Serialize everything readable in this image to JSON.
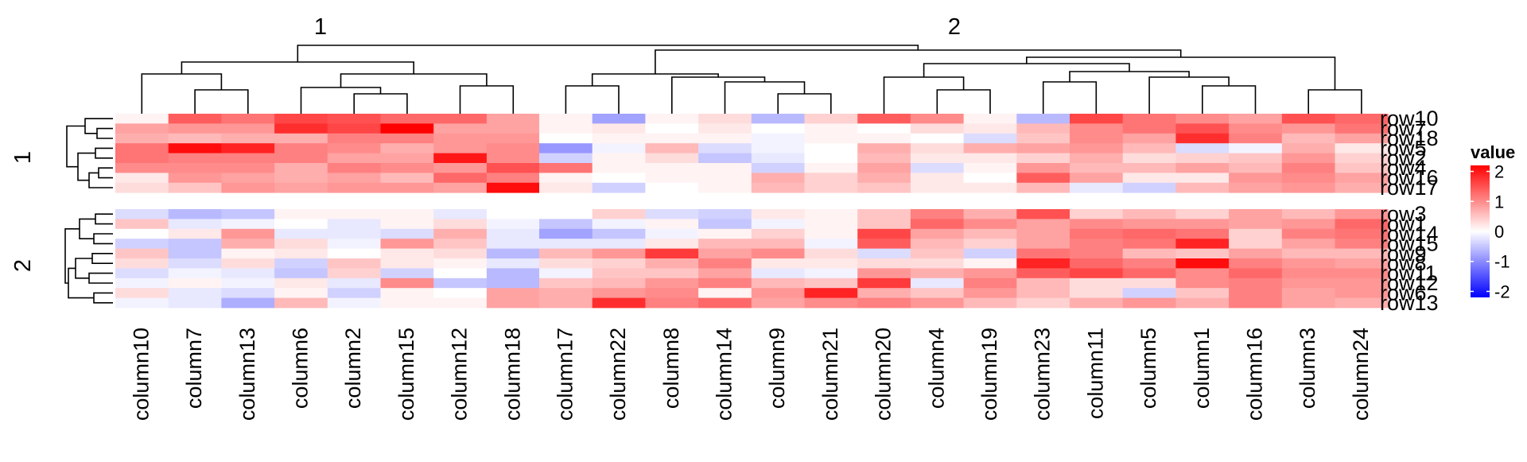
{
  "chart_data": {
    "type": "heatmap",
    "column_split_titles": [
      "1",
      "2"
    ],
    "row_split_titles": [
      "1",
      "2"
    ],
    "columns": [
      [
        "column10",
        "column7",
        "column13",
        "column6",
        "column2",
        "column15",
        "column12",
        "column18"
      ],
      [
        "column17",
        "column22",
        "column8",
        "column14",
        "column9",
        "column21",
        "column20",
        "column4",
        "column19",
        "column23",
        "column11",
        "column5",
        "column1",
        "column16",
        "column3",
        "column24"
      ]
    ],
    "rows": [
      [
        "row10",
        "row7",
        "row18",
        "row5",
        "row2",
        "row4",
        "row16",
        "row17"
      ],
      [
        "row3",
        "row1",
        "row14",
        "row15",
        "row9",
        "row8",
        "row11",
        "row12",
        "row6",
        "row13"
      ]
    ],
    "legend": {
      "title": "value",
      "ticks": [
        2,
        1,
        0,
        -1,
        -2
      ],
      "range": [
        -2.2,
        2.2
      ],
      "colors": {
        "low": "#0000ff",
        "mid": "#ffffff",
        "high": "#ff0000"
      }
    },
    "values": [
      [
        0.1,
        1.4,
        1.2,
        1.6,
        1.5,
        1.3,
        1.3,
        0.8,
        0.1,
        -0.8,
        0.1,
        0.3,
        -0.6,
        0.4,
        1.4,
        1.0,
        0.1,
        -0.6,
        1.6,
        1.2,
        1.0,
        0.8,
        1.5,
        1.3
      ],
      [
        0.8,
        0.9,
        0.9,
        1.8,
        1.6,
        2.2,
        0.8,
        0.8,
        0.1,
        0.2,
        0.0,
        0.2,
        0.0,
        0.1,
        0.0,
        0.3,
        0.2,
        0.6,
        1.0,
        1.2,
        1.5,
        1.0,
        0.9,
        1.2
      ],
      [
        0.7,
        0.6,
        0.7,
        0.7,
        1.1,
        1.1,
        0.9,
        0.9,
        0.0,
        0.1,
        0.1,
        0.1,
        -0.1,
        0.1,
        0.1,
        0.0,
        -0.3,
        0.5,
        1.0,
        0.8,
        1.8,
        1.1,
        0.6,
        0.8
      ],
      [
        1.2,
        2.1,
        1.9,
        1.1,
        1.0,
        0.7,
        0.9,
        1.0,
        -0.9,
        -0.1,
        0.6,
        -0.3,
        -0.1,
        0.0,
        0.7,
        0.3,
        0.7,
        0.8,
        0.9,
        0.6,
        -0.3,
        -0.1,
        0.7,
        0.2
      ],
      [
        1.2,
        1.1,
        1.1,
        1.1,
        0.8,
        0.8,
        2.0,
        1.0,
        -0.4,
        0.1,
        0.3,
        -0.5,
        -0.2,
        0.0,
        0.6,
        0.2,
        0.2,
        0.4,
        0.7,
        0.3,
        0.4,
        0.5,
        0.9,
        0.4
      ],
      [
        1.0,
        1.0,
        1.0,
        0.7,
        1.1,
        1.0,
        0.9,
        1.5,
        1.2,
        0.1,
        0.1,
        0.1,
        -0.4,
        0.1,
        0.8,
        -0.3,
        0.1,
        0.9,
        0.6,
        0.6,
        0.8,
        0.6,
        1.1,
        0.5
      ],
      [
        0.2,
        0.9,
        0.8,
        0.7,
        0.8,
        0.6,
        1.3,
        1.1,
        0.1,
        0.0,
        0.1,
        0.1,
        0.7,
        0.4,
        0.7,
        0.2,
        0.0,
        1.4,
        0.8,
        0.2,
        0.2,
        0.9,
        1.0,
        0.8
      ],
      [
        0.3,
        0.5,
        0.9,
        0.8,
        0.9,
        0.9,
        0.8,
        2.1,
        0.2,
        -0.4,
        0.0,
        0.1,
        0.6,
        0.4,
        0.5,
        0.2,
        0.2,
        0.6,
        -0.2,
        -0.4,
        0.6,
        0.8,
        0.9,
        0.7
      ],
      [
        -0.3,
        -0.6,
        -0.5,
        0.1,
        0.1,
        0.1,
        -0.2,
        0.0,
        0.0,
        0.4,
        -0.3,
        -0.4,
        0.2,
        0.1,
        0.5,
        1.1,
        0.7,
        1.5,
        0.4,
        0.6,
        0.4,
        0.8,
        0.6,
        0.9
      ],
      [
        0.5,
        -0.2,
        -0.1,
        0.0,
        -0.2,
        0.1,
        0.3,
        -0.1,
        -0.5,
        -0.1,
        0.1,
        -0.5,
        -0.1,
        0.1,
        0.5,
        1.3,
        1.0,
        0.8,
        1.0,
        0.9,
        0.9,
        0.8,
        0.9,
        1.3
      ],
      [
        0.0,
        0.2,
        0.9,
        -0.2,
        -0.2,
        -0.3,
        0.7,
        -0.2,
        -0.8,
        -0.5,
        -0.1,
        0.1,
        0.4,
        0.1,
        1.6,
        0.8,
        0.6,
        0.8,
        1.2,
        1.3,
        1.2,
        0.4,
        1.1,
        1.2
      ],
      [
        -0.4,
        -0.5,
        0.7,
        0.3,
        -0.1,
        0.9,
        0.5,
        -0.2,
        -0.2,
        -0.2,
        0.2,
        0.6,
        0.6,
        -0.1,
        1.4,
        0.6,
        0.4,
        0.8,
        1.1,
        1.2,
        1.9,
        0.4,
        0.8,
        1.1
      ],
      [
        0.5,
        -0.5,
        0.1,
        0.2,
        0.0,
        0.2,
        0.3,
        -0.6,
        0.6,
        0.9,
        1.7,
        0.8,
        1.0,
        0.3,
        -0.3,
        0.5,
        -0.4,
        1.2,
        1.1,
        0.6,
        0.5,
        0.8,
        0.6,
        0.6
      ],
      [
        0.3,
        -0.3,
        0.3,
        -0.4,
        0.5,
        0.2,
        0.1,
        -0.2,
        0.3,
        0.4,
        0.7,
        1.1,
        0.2,
        0.2,
        0.3,
        0.3,
        0.1,
        1.9,
        1.3,
        1.1,
        2.1,
        1.1,
        0.9,
        0.8
      ],
      [
        -0.3,
        -0.1,
        -0.2,
        -0.5,
        0.4,
        -0.4,
        0.0,
        -0.6,
        -0.1,
        0.5,
        0.5,
        0.8,
        -0.2,
        -0.1,
        0.9,
        0.7,
        0.9,
        1.4,
        1.6,
        1.3,
        1.0,
        1.3,
        1.0,
        1.0
      ],
      [
        -0.1,
        0.1,
        -0.1,
        0.2,
        -0.2,
        1.0,
        -0.5,
        -0.6,
        0.5,
        0.6,
        0.9,
        1.1,
        0.6,
        0.5,
        1.7,
        -0.2,
        1.1,
        0.6,
        0.3,
        0.3,
        1.0,
        1.1,
        0.9,
        0.9
      ],
      [
        0.3,
        -0.2,
        -0.3,
        0.1,
        -0.4,
        0.1,
        0.0,
        0.8,
        0.7,
        0.9,
        1.0,
        0.1,
        0.9,
        1.9,
        0.7,
        0.5,
        0.9,
        0.6,
        0.3,
        -0.4,
        0.5,
        1.1,
        0.8,
        0.9
      ],
      [
        -0.1,
        -0.2,
        -0.7,
        0.6,
        -0.1,
        0.1,
        0.1,
        0.8,
        0.7,
        1.8,
        1.1,
        1.3,
        0.8,
        1.0,
        1.1,
        0.9,
        0.6,
        0.4,
        0.7,
        0.9,
        0.7,
        1.1,
        0.8,
        0.7
      ]
    ]
  }
}
